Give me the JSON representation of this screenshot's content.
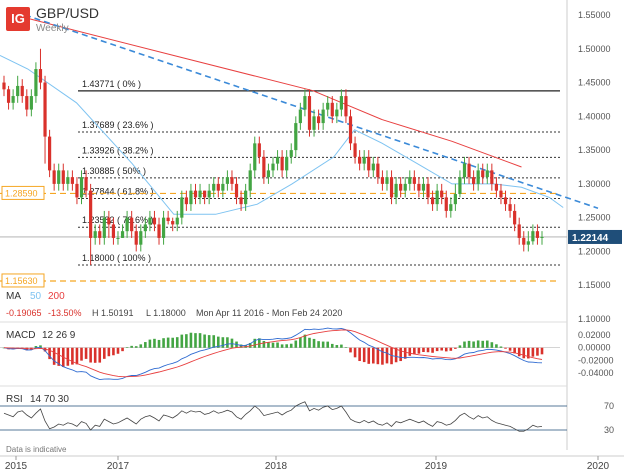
{
  "header": {
    "logo": "IG",
    "title": "GBP/USD",
    "subtitle": "Weekly"
  },
  "colors": {
    "bull": "#43a543",
    "bear": "#d9312b",
    "ma50": "#7ec3f1",
    "ma200": "#e84040",
    "trendline": "#3b8ad8",
    "support": "#f5a623",
    "current": "#1f4e79",
    "macd_line": "#2f6bd1",
    "signal_line": "#e84040",
    "rsi": "#444444",
    "fib_solid": "#222222",
    "fib_dotted": "#333333"
  },
  "chart_data": {
    "type": "candlestick",
    "title": "GBP/USD",
    "subtitle": "Weekly",
    "x_ticks": [
      "2015",
      "2017",
      "2018",
      "2019",
      "2020"
    ],
    "y_ticks": [
      "1.55000",
      "1.50000",
      "1.45000",
      "1.40000",
      "1.35000",
      "1.30000",
      "1.25000",
      "1.20000",
      "1.15000",
      "1.10000"
    ],
    "ylim": [
      1.1,
      1.55
    ],
    "x_range": [
      2015.75,
      2020.05
    ],
    "current_price": {
      "label": "1.22144",
      "value": 1.22144
    },
    "left_levels": [
      {
        "label": "1.28590",
        "value": 1.2859
      },
      {
        "label": "1.15630",
        "value": 1.1563
      }
    ],
    "fibonacci": [
      {
        "label": "1.43771 ( 0% )",
        "value": 1.43771,
        "style": "solid"
      },
      {
        "label": "1.37689 ( 23.6% )",
        "value": 1.37689,
        "style": "dotted"
      },
      {
        "label": "1.33926 ( 38.2% )",
        "value": 1.33926,
        "style": "dotted"
      },
      {
        "label": "1.30885 ( 50% )",
        "value": 1.30885,
        "style": "dotted"
      },
      {
        "label": "1.27844 ( 61.8% )",
        "value": 1.27844,
        "style": "dotted"
      },
      {
        "label": "1.23582 ( 78.6% )",
        "value": 1.23582,
        "style": "dotted"
      },
      {
        "label": "1.18000 ( 100% )",
        "value": 1.18,
        "style": "dotted"
      }
    ],
    "trendline": {
      "x": [
        2015.93,
        2020.05
      ],
      "y": [
        1.55,
        1.264
      ]
    },
    "ma_legend": {
      "label": "MA",
      "fast": "50",
      "slow": "200"
    },
    "ma200_points": {
      "x": [
        2015.95,
        2017.0,
        2018.0,
        2018.5,
        2019.0,
        2019.5
      ],
      "y": [
        1.545,
        1.49,
        1.438,
        1.395,
        1.363,
        1.325
      ]
    },
    "ma50_points": {
      "x": [
        2015.75,
        2015.95,
        2016.3,
        2016.7,
        2017.0,
        2017.3,
        2017.6,
        2017.85,
        2018.15,
        2018.3,
        2018.5,
        2018.75,
        2019.0,
        2019.3,
        2019.5,
        2019.7,
        2019.8
      ],
      "y": [
        1.49,
        1.47,
        1.42,
        1.33,
        1.255,
        1.255,
        1.27,
        1.3,
        1.34,
        1.38,
        1.36,
        1.33,
        1.3,
        1.3,
        1.295,
        1.28,
        1.265
      ]
    },
    "stats": {
      "change": "-0.19065",
      "change_pct": "-13.50%",
      "high": "H 1.50191",
      "low": "L 1.18000",
      "range": "Mon Apr 11 2016 - Mon Feb 24 2020"
    },
    "candles": [
      [
        1.45,
        1.44,
        1.46,
        1.43
      ],
      [
        1.44,
        1.42,
        1.445,
        1.41
      ],
      [
        1.42,
        1.43,
        1.44,
        1.41
      ],
      [
        1.43,
        1.445,
        1.46,
        1.42
      ],
      [
        1.445,
        1.43,
        1.455,
        1.42
      ],
      [
        1.43,
        1.41,
        1.44,
        1.4
      ],
      [
        1.41,
        1.43,
        1.44,
        1.4
      ],
      [
        1.43,
        1.47,
        1.48,
        1.42
      ],
      [
        1.47,
        1.45,
        1.5,
        1.44
      ],
      [
        1.45,
        1.37,
        1.46,
        1.33
      ],
      [
        1.37,
        1.32,
        1.38,
        1.31
      ],
      [
        1.32,
        1.3,
        1.33,
        1.29
      ],
      [
        1.3,
        1.32,
        1.33,
        1.29
      ],
      [
        1.32,
        1.3,
        1.33,
        1.29
      ],
      [
        1.3,
        1.31,
        1.32,
        1.29
      ],
      [
        1.31,
        1.3,
        1.32,
        1.29
      ],
      [
        1.3,
        1.28,
        1.31,
        1.27
      ],
      [
        1.28,
        1.31,
        1.32,
        1.27
      ],
      [
        1.31,
        1.29,
        1.32,
        1.28
      ],
      [
        1.29,
        1.22,
        1.3,
        1.18
      ],
      [
        1.22,
        1.23,
        1.24,
        1.21
      ],
      [
        1.23,
        1.22,
        1.24,
        1.21
      ],
      [
        1.22,
        1.25,
        1.26,
        1.21
      ],
      [
        1.25,
        1.24,
        1.26,
        1.22
      ],
      [
        1.24,
        1.22,
        1.25,
        1.21
      ],
      [
        1.22,
        1.22,
        1.23,
        1.21
      ],
      [
        1.22,
        1.23,
        1.24,
        1.22
      ],
      [
        1.23,
        1.25,
        1.26,
        1.22
      ],
      [
        1.25,
        1.23,
        1.26,
        1.22
      ],
      [
        1.23,
        1.21,
        1.24,
        1.2
      ],
      [
        1.21,
        1.23,
        1.24,
        1.2
      ],
      [
        1.23,
        1.24,
        1.25,
        1.22
      ],
      [
        1.24,
        1.25,
        1.26,
        1.23
      ],
      [
        1.25,
        1.24,
        1.26,
        1.23
      ],
      [
        1.24,
        1.22,
        1.25,
        1.21
      ],
      [
        1.22,
        1.25,
        1.26,
        1.21
      ],
      [
        1.25,
        1.245,
        1.26,
        1.24
      ],
      [
        1.245,
        1.24,
        1.25,
        1.23
      ],
      [
        1.24,
        1.25,
        1.26,
        1.23
      ],
      [
        1.25,
        1.28,
        1.29,
        1.24
      ],
      [
        1.28,
        1.27,
        1.29,
        1.26
      ],
      [
        1.27,
        1.29,
        1.3,
        1.26
      ],
      [
        1.29,
        1.28,
        1.3,
        1.27
      ],
      [
        1.28,
        1.29,
        1.3,
        1.27
      ],
      [
        1.29,
        1.28,
        1.29,
        1.27
      ],
      [
        1.28,
        1.29,
        1.3,
        1.27
      ],
      [
        1.29,
        1.3,
        1.31,
        1.28
      ],
      [
        1.3,
        1.29,
        1.31,
        1.28
      ],
      [
        1.29,
        1.3,
        1.31,
        1.28
      ],
      [
        1.3,
        1.31,
        1.32,
        1.29
      ],
      [
        1.31,
        1.3,
        1.32,
        1.29
      ],
      [
        1.3,
        1.28,
        1.31,
        1.27
      ],
      [
        1.28,
        1.27,
        1.29,
        1.26
      ],
      [
        1.27,
        1.29,
        1.3,
        1.26
      ],
      [
        1.29,
        1.32,
        1.33,
        1.28
      ],
      [
        1.32,
        1.36,
        1.37,
        1.31
      ],
      [
        1.36,
        1.34,
        1.37,
        1.33
      ],
      [
        1.34,
        1.31,
        1.35,
        1.3
      ],
      [
        1.31,
        1.32,
        1.33,
        1.3
      ],
      [
        1.32,
        1.33,
        1.34,
        1.31
      ],
      [
        1.33,
        1.34,
        1.35,
        1.32
      ],
      [
        1.34,
        1.32,
        1.35,
        1.31
      ],
      [
        1.32,
        1.34,
        1.35,
        1.31
      ],
      [
        1.34,
        1.35,
        1.36,
        1.33
      ],
      [
        1.35,
        1.39,
        1.4,
        1.34
      ],
      [
        1.39,
        1.41,
        1.42,
        1.38
      ],
      [
        1.41,
        1.43,
        1.44,
        1.4
      ],
      [
        1.43,
        1.38,
        1.44,
        1.37
      ],
      [
        1.38,
        1.4,
        1.41,
        1.37
      ],
      [
        1.4,
        1.39,
        1.41,
        1.38
      ],
      [
        1.39,
        1.41,
        1.42,
        1.38
      ],
      [
        1.41,
        1.42,
        1.43,
        1.4
      ],
      [
        1.42,
        1.4,
        1.43,
        1.39
      ],
      [
        1.4,
        1.41,
        1.42,
        1.39
      ],
      [
        1.41,
        1.43,
        1.44,
        1.4
      ],
      [
        1.43,
        1.4,
        1.44,
        1.39
      ],
      [
        1.4,
        1.36,
        1.41,
        1.35
      ],
      [
        1.36,
        1.34,
        1.37,
        1.33
      ],
      [
        1.34,
        1.33,
        1.35,
        1.32
      ],
      [
        1.33,
        1.34,
        1.35,
        1.32
      ],
      [
        1.34,
        1.32,
        1.35,
        1.31
      ],
      [
        1.32,
        1.33,
        1.34,
        1.31
      ],
      [
        1.33,
        1.31,
        1.34,
        1.3
      ],
      [
        1.31,
        1.3,
        1.32,
        1.29
      ],
      [
        1.3,
        1.31,
        1.32,
        1.29
      ],
      [
        1.31,
        1.28,
        1.32,
        1.27
      ],
      [
        1.28,
        1.3,
        1.31,
        1.27
      ],
      [
        1.3,
        1.29,
        1.31,
        1.28
      ],
      [
        1.29,
        1.3,
        1.31,
        1.28
      ],
      [
        1.3,
        1.31,
        1.32,
        1.29
      ],
      [
        1.31,
        1.3,
        1.32,
        1.29
      ],
      [
        1.3,
        1.29,
        1.31,
        1.28
      ],
      [
        1.29,
        1.3,
        1.31,
        1.28
      ],
      [
        1.3,
        1.28,
        1.31,
        1.27
      ],
      [
        1.28,
        1.27,
        1.29,
        1.26
      ],
      [
        1.27,
        1.29,
        1.3,
        1.26
      ],
      [
        1.29,
        1.28,
        1.3,
        1.27
      ],
      [
        1.28,
        1.26,
        1.29,
        1.25
      ],
      [
        1.26,
        1.27,
        1.28,
        1.25
      ],
      [
        1.27,
        1.285,
        1.3,
        1.26
      ],
      [
        1.285,
        1.31,
        1.32,
        1.28
      ],
      [
        1.31,
        1.33,
        1.34,
        1.3
      ],
      [
        1.33,
        1.31,
        1.34,
        1.3
      ],
      [
        1.31,
        1.3,
        1.32,
        1.29
      ],
      [
        1.3,
        1.32,
        1.33,
        1.29
      ],
      [
        1.32,
        1.31,
        1.33,
        1.3
      ],
      [
        1.31,
        1.32,
        1.33,
        1.3
      ],
      [
        1.32,
        1.3,
        1.33,
        1.29
      ],
      [
        1.3,
        1.29,
        1.31,
        1.28
      ],
      [
        1.29,
        1.28,
        1.3,
        1.27
      ],
      [
        1.28,
        1.27,
        1.29,
        1.26
      ],
      [
        1.27,
        1.26,
        1.28,
        1.25
      ],
      [
        1.26,
        1.24,
        1.27,
        1.23
      ],
      [
        1.24,
        1.22,
        1.25,
        1.21
      ],
      [
        1.22,
        1.21,
        1.23,
        1.2
      ],
      [
        1.21,
        1.215,
        1.23,
        1.2
      ],
      [
        1.215,
        1.23,
        1.24,
        1.21
      ],
      [
        1.23,
        1.22,
        1.24,
        1.21
      ],
      [
        1.22,
        1.22144,
        1.23,
        1.21
      ]
    ],
    "macd": {
      "label": "MACD",
      "params": "12  26  9",
      "y_ticks": [
        "0.02000",
        "0.00000",
        "-0.02000",
        "-0.04000"
      ],
      "ylim": [
        -0.045,
        0.025
      ]
    },
    "rsi": {
      "label": "RSI",
      "params": "14  70  30",
      "levels": [
        "70",
        "30"
      ],
      "ylim": [
        10,
        90
      ],
      "values": [
        58,
        55,
        52,
        60,
        62,
        55,
        50,
        58,
        65,
        45,
        32,
        35,
        40,
        38,
        42,
        40,
        36,
        44,
        41,
        30,
        38,
        36,
        48,
        44,
        40,
        42,
        46,
        50,
        45,
        40,
        48,
        52,
        54,
        50,
        45,
        55,
        53,
        50,
        55,
        62,
        58,
        62,
        60,
        61,
        56,
        58,
        62,
        58,
        60,
        63,
        60,
        52,
        48,
        56,
        62,
        70,
        64,
        54,
        56,
        58,
        60,
        55,
        60,
        63,
        70,
        74,
        77,
        62,
        66,
        63,
        68,
        70,
        64,
        66,
        70,
        60,
        48,
        44,
        42,
        46,
        42,
        45,
        40,
        38,
        42,
        36,
        44,
        42,
        45,
        48,
        45,
        42,
        45,
        40,
        36,
        44,
        42,
        38,
        40,
        46,
        54,
        58,
        52,
        48,
        54,
        50,
        52,
        46,
        42,
        40,
        38,
        36,
        32,
        28,
        28,
        32,
        38,
        35,
        36
      ]
    }
  },
  "footer": {
    "note": "Data is indicative"
  }
}
